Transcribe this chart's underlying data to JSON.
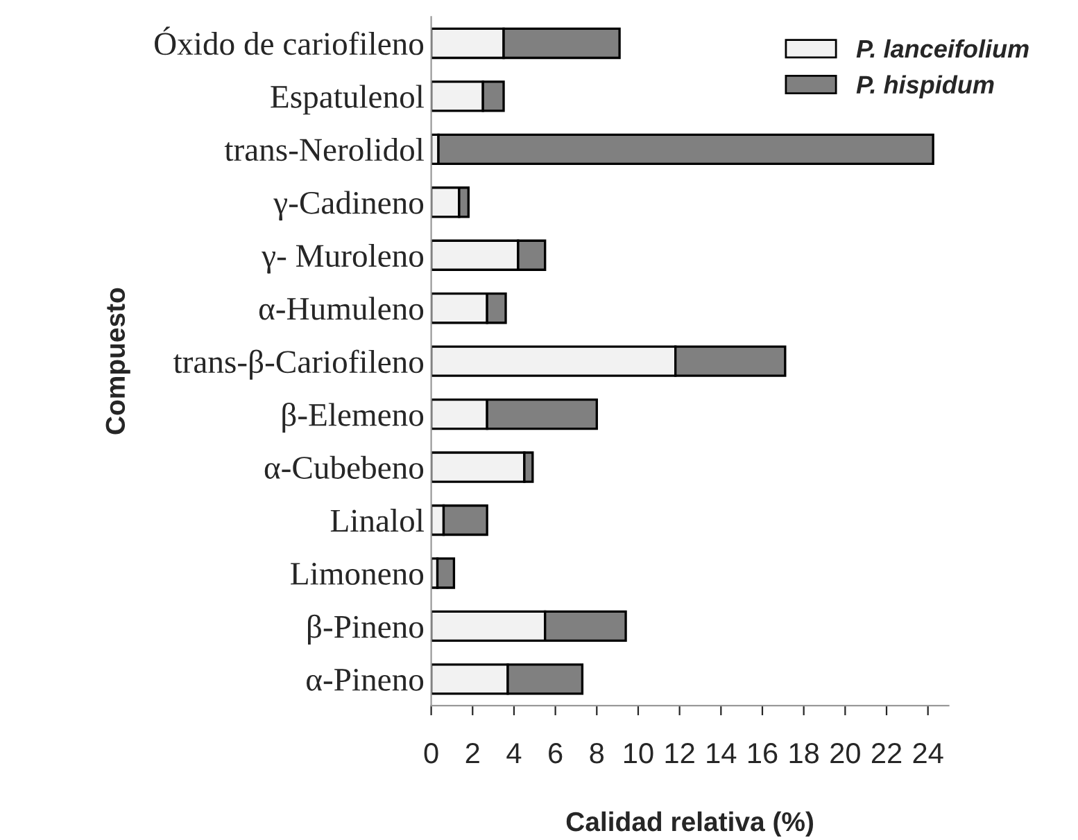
{
  "chart_data": {
    "type": "bar",
    "orientation": "horizontal",
    "stacked": true,
    "xlabel": "Calidad relativa (%)",
    "ylabel": "Compuesto",
    "categories": [
      "Óxido de cariofileno",
      "Espatulenol",
      "trans-Nerolidol",
      "γ-Cadineno",
      "γ- Muroleno",
      "α-Humuleno",
      "trans-β-Cariofileno",
      "β-Elemeno",
      "α-Cubebeno",
      "Linalol",
      "Limoneno",
      "β-Pineno",
      "α-Pineno"
    ],
    "series": [
      {
        "name": "P. lanceifolium",
        "color": "#f2f2f2",
        "values": [
          3.5,
          2.5,
          0.35,
          1.35,
          4.2,
          2.7,
          11.8,
          2.7,
          4.5,
          0.6,
          0.3,
          5.5,
          3.7
        ]
      },
      {
        "name": "P. hispidum",
        "color": "#808080",
        "values": [
          5.6,
          1.0,
          23.9,
          0.45,
          1.3,
          0.9,
          5.3,
          5.3,
          0.4,
          2.1,
          0.8,
          3.9,
          3.6
        ]
      }
    ],
    "xlim": [
      0,
      25
    ],
    "xticks": [
      0,
      2,
      4,
      6,
      8,
      10,
      12,
      14,
      16,
      18,
      20,
      22,
      24
    ],
    "grid": false,
    "legend": "top right"
  }
}
